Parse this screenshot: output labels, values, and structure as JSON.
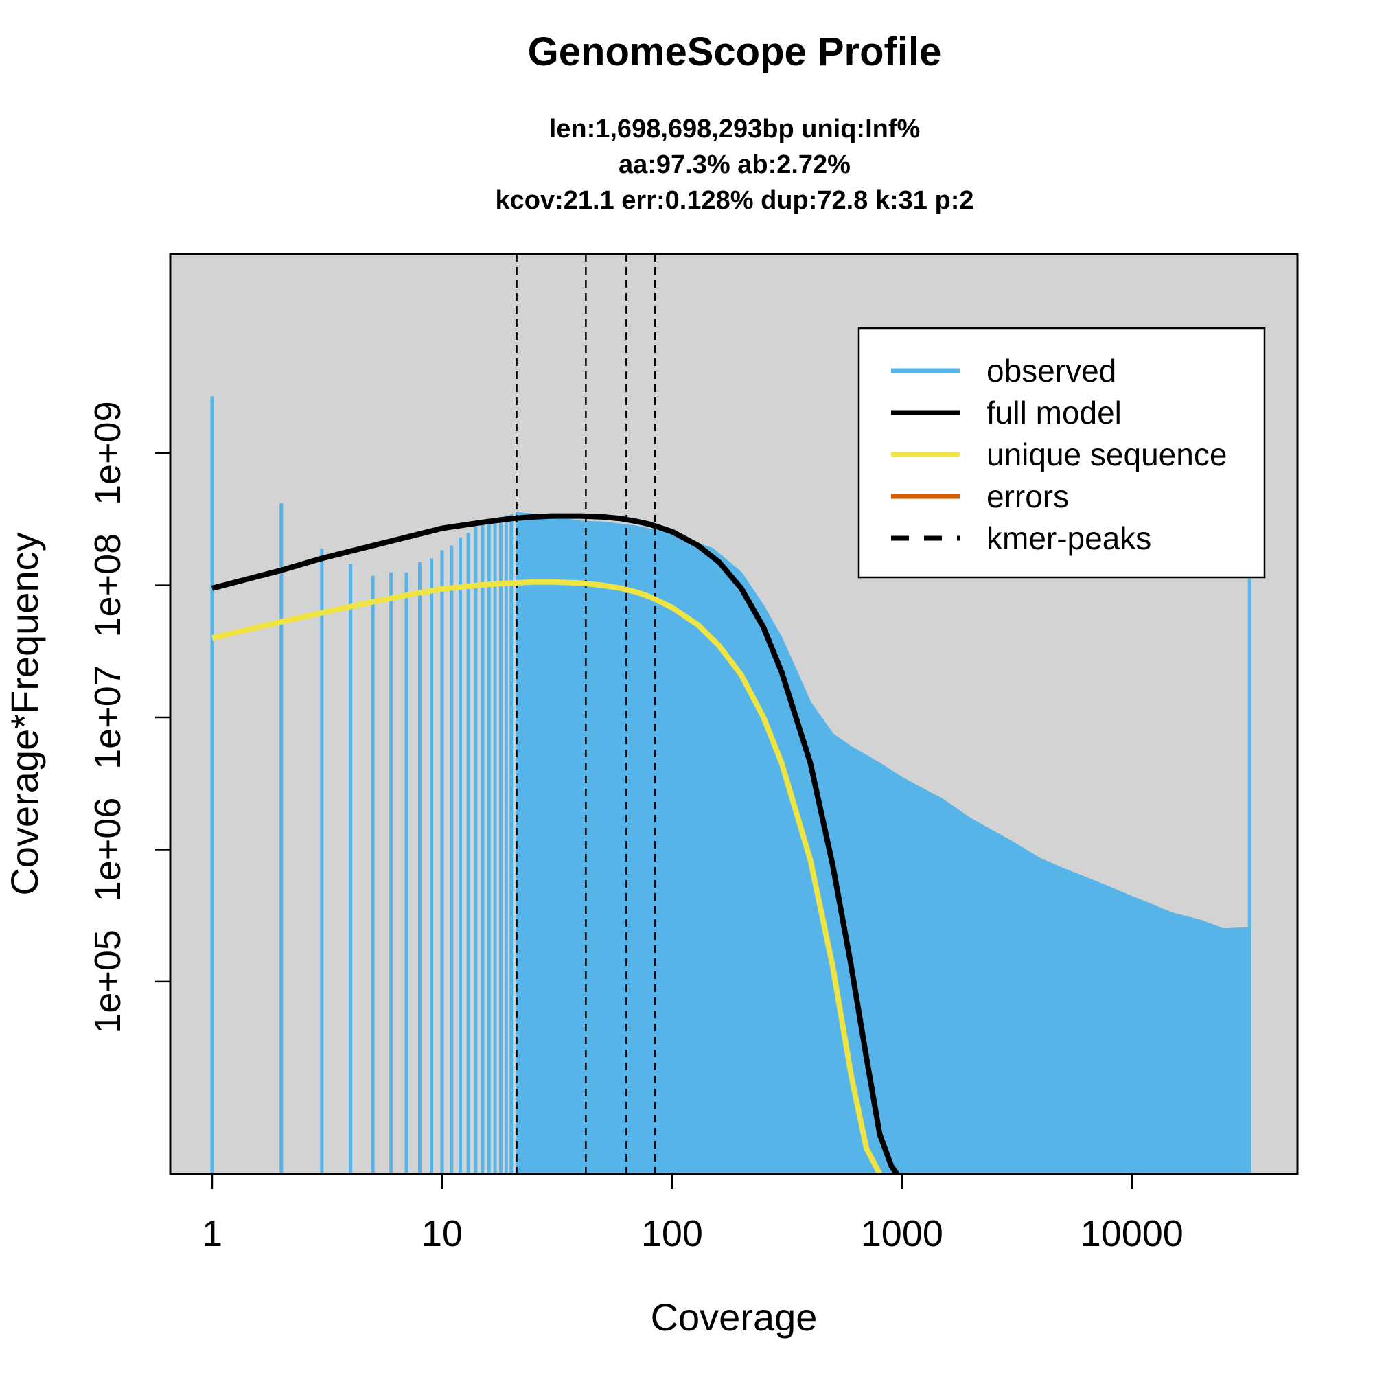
{
  "chart_data": {
    "type": "line",
    "title": "GenomeScope Profile",
    "subtitle_lines": [
      "len:1,698,698,293bp uniq:Inf%",
      "aa:97.3% ab:2.72%",
      "kcov:21.1 err:0.128%  dup:72.8  k:31 p:2"
    ],
    "xlabel": "Coverage",
    "ylabel": "Coverage*Frequency",
    "x_scale": "log",
    "y_scale": "log",
    "xlim": [
      1,
      35000
    ],
    "ylim": [
      3500,
      30000000000
    ],
    "x_ticks": [
      1,
      10,
      100,
      1000,
      10000
    ],
    "x_tick_labels": [
      "1",
      "10",
      "100",
      "1000",
      "10000"
    ],
    "y_ticks": [
      100000,
      1000000,
      10000000,
      100000000,
      1000000000
    ],
    "y_tick_labels": [
      "1e+05",
      "1e+06",
      "1e+07",
      "1e+08",
      "1e+09"
    ],
    "background_color": "#d3d3d3",
    "colors": {
      "observed": "#56b4e9",
      "full_model": "#000000",
      "unique_sequence": "#f0e442",
      "errors": "#d55e00",
      "kmer_peaks": "#000000"
    },
    "legend": {
      "placement": "top-right",
      "entries": [
        {
          "label": "observed",
          "style": "solid",
          "color": "#56b4e9"
        },
        {
          "label": "full model",
          "style": "solid",
          "color": "#000000"
        },
        {
          "label": "unique sequence",
          "style": "solid",
          "color": "#f0e442"
        },
        {
          "label": "errors",
          "style": "solid",
          "color": "#d55e00"
        },
        {
          "label": "kmer-peaks",
          "style": "dashed",
          "color": "#000000"
        }
      ]
    },
    "kmer_peaks": [
      21.1,
      42.2,
      63.3,
      84.4
    ],
    "observed_spikes": [
      {
        "x": 1,
        "y": 2700000000
      },
      {
        "x": 2,
        "y": 420000000
      },
      {
        "x": 3,
        "y": 190000000
      },
      {
        "x": 4,
        "y": 145000000
      },
      {
        "x": 5,
        "y": 118000000
      },
      {
        "x": 6,
        "y": 125000000
      },
      {
        "x": 7,
        "y": 125000000
      },
      {
        "x": 8,
        "y": 150000000
      },
      {
        "x": 9,
        "y": 160000000
      },
      {
        "x": 10,
        "y": 185000000
      },
      {
        "x": 11,
        "y": 200000000
      },
      {
        "x": 12,
        "y": 230000000
      },
      {
        "x": 13,
        "y": 250000000
      },
      {
        "x": 14,
        "y": 280000000
      },
      {
        "x": 15,
        "y": 300000000
      },
      {
        "x": 16,
        "y": 310000000
      },
      {
        "x": 17,
        "y": 320000000
      },
      {
        "x": 18,
        "y": 330000000
      },
      {
        "x": 19,
        "y": 340000000
      },
      {
        "x": 20,
        "y": 345000000
      }
    ],
    "observed_envelope": [
      {
        "x": 21,
        "y": 355000000
      },
      {
        "x": 25,
        "y": 345000000
      },
      {
        "x": 30,
        "y": 330000000
      },
      {
        "x": 40,
        "y": 305000000
      },
      {
        "x": 50,
        "y": 300000000
      },
      {
        "x": 60,
        "y": 290000000
      },
      {
        "x": 70,
        "y": 280000000
      },
      {
        "x": 100,
        "y": 245000000
      },
      {
        "x": 150,
        "y": 190000000
      },
      {
        "x": 200,
        "y": 125000000
      },
      {
        "x": 250,
        "y": 70000000
      },
      {
        "x": 300,
        "y": 40000000
      },
      {
        "x": 350,
        "y": 22000000
      },
      {
        "x": 400,
        "y": 13000000
      },
      {
        "x": 500,
        "y": 7500000
      },
      {
        "x": 600,
        "y": 6000000
      },
      {
        "x": 800,
        "y": 4500000
      },
      {
        "x": 1000,
        "y": 3500000
      },
      {
        "x": 1500,
        "y": 2400000
      },
      {
        "x": 2000,
        "y": 1700000
      },
      {
        "x": 3000,
        "y": 1150000
      },
      {
        "x": 4000,
        "y": 850000
      },
      {
        "x": 5000,
        "y": 720000
      },
      {
        "x": 7000,
        "y": 570000
      },
      {
        "x": 10000,
        "y": 440000
      },
      {
        "x": 15000,
        "y": 330000
      },
      {
        "x": 20000,
        "y": 290000
      },
      {
        "x": 25000,
        "y": 250000
      },
      {
        "x": 32000,
        "y": 255000
      }
    ],
    "observed_last_spike": {
      "x": 32500,
      "y": 5000000000
    },
    "series": [
      {
        "name": "full model",
        "x": [
          1,
          2,
          3,
          5,
          8,
          10,
          15,
          20,
          25,
          30,
          40,
          50,
          60,
          70,
          80,
          100,
          130,
          160,
          200,
          250,
          300,
          400,
          500,
          600,
          700,
          800,
          900,
          950
        ],
        "y": [
          95000000,
          130000000,
          160000000,
          200000000,
          245000000,
          270000000,
          300000000,
          320000000,
          330000000,
          335000000,
          335000000,
          330000000,
          320000000,
          305000000,
          290000000,
          255000000,
          200000000,
          150000000,
          95000000,
          48000000,
          22000000,
          4500000,
          760000,
          135000,
          27000,
          7000,
          4000,
          3500
        ]
      },
      {
        "name": "unique sequence",
        "x": [
          1,
          2,
          3,
          5,
          8,
          10,
          15,
          20,
          25,
          30,
          40,
          50,
          60,
          70,
          80,
          100,
          130,
          160,
          200,
          250,
          300,
          400,
          500,
          600,
          700,
          800
        ],
        "y": [
          40000000,
          53000000,
          62000000,
          75000000,
          88000000,
          94000000,
          101000000,
          104000000,
          106000000,
          106000000,
          104000000,
          100000000,
          95000000,
          89000000,
          82000000,
          68000000,
          50000000,
          35000000,
          21000000,
          10000000,
          4500000,
          830000,
          130000,
          20000,
          5500,
          3500
        ]
      }
    ]
  }
}
